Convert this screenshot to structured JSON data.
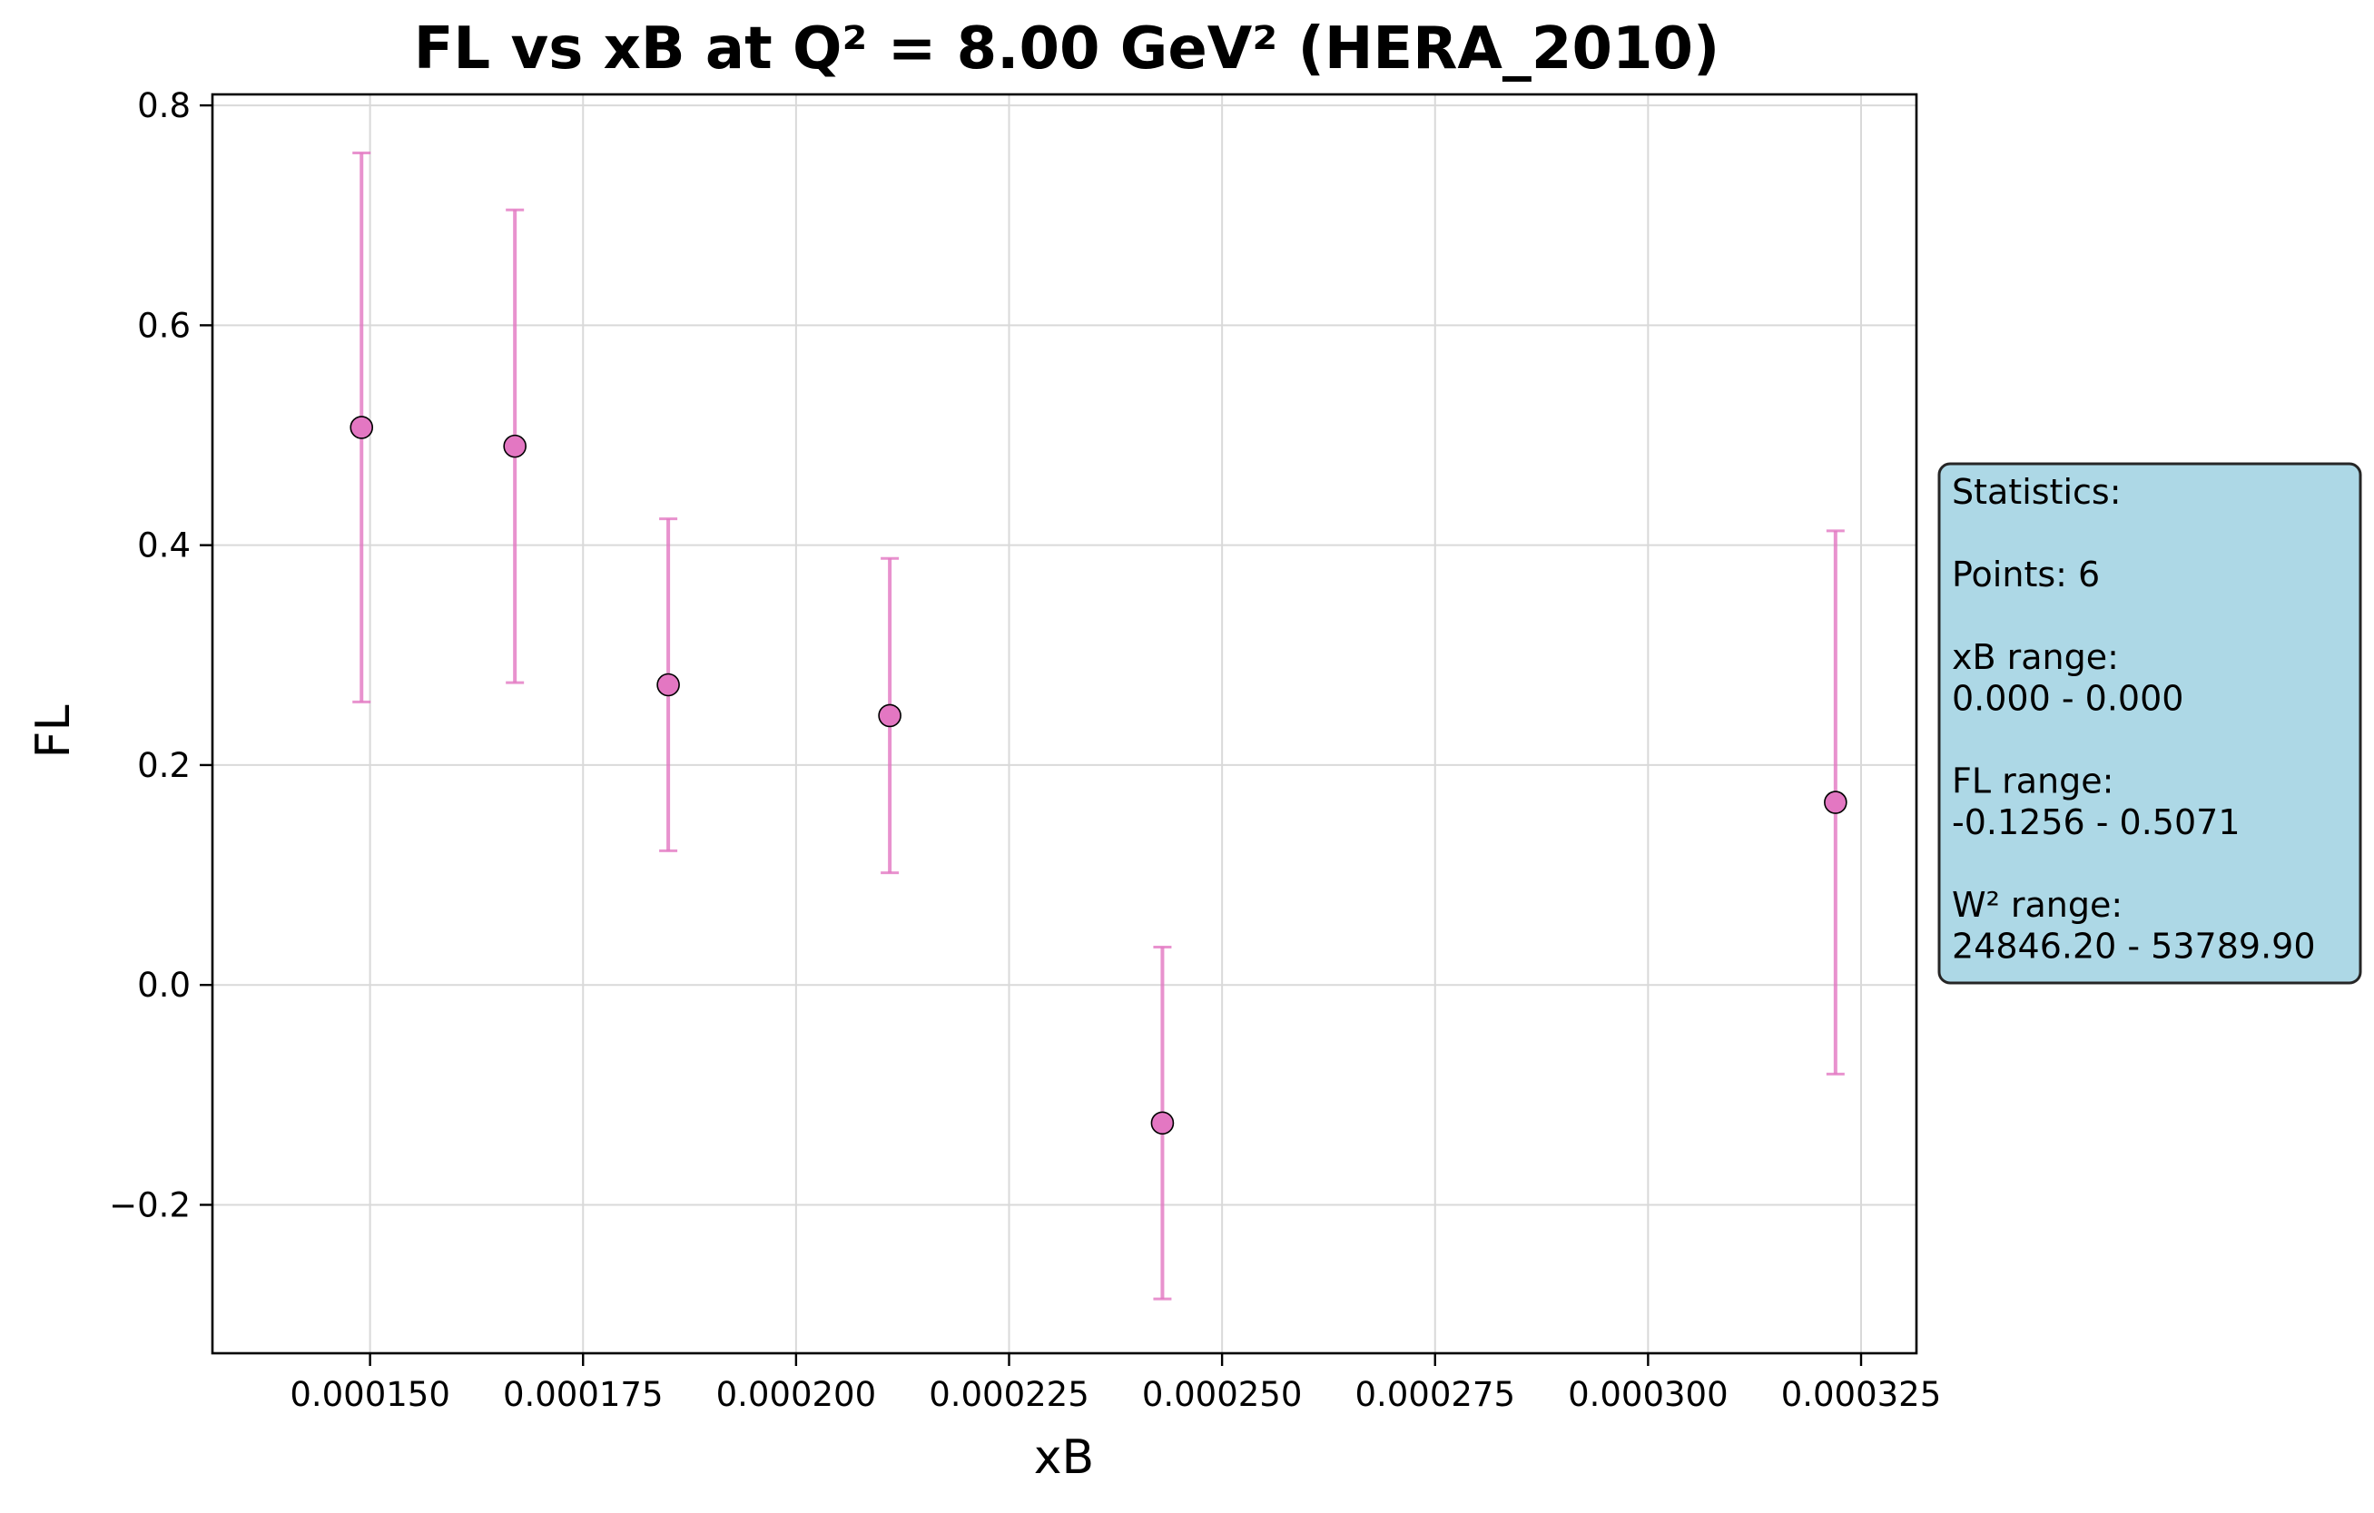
{
  "chart_data": {
    "type": "scatter",
    "title": "FL vs xB at Q² = 8.00 GeV² (HERA_2010)",
    "xlabel": "xB",
    "ylabel": "FL",
    "xlim": [
      0.0001315,
      0.0003315
    ],
    "ylim": [
      -0.335,
      0.81
    ],
    "x_ticks": [
      0.00015,
      0.000175,
      0.0002,
      0.000225,
      0.00025,
      0.000275,
      0.0003,
      0.000325
    ],
    "x_tick_labels": [
      "0.000150",
      "0.000175",
      "0.000200",
      "0.000225",
      "0.000250",
      "0.000275",
      "0.000300",
      "0.000325"
    ],
    "y_ticks": [
      -0.2,
      0.0,
      0.2,
      0.4,
      0.6,
      0.8
    ],
    "y_tick_labels": [
      "−0.2",
      "0.0",
      "0.2",
      "0.4",
      "0.6",
      "0.8"
    ],
    "grid": true,
    "series": [
      {
        "color": "#e377c2",
        "points": [
          {
            "x": 0.000149,
            "y": 0.5071,
            "err": 0.2497
          },
          {
            "x": 0.000167,
            "y": 0.49,
            "err": 0.215
          },
          {
            "x": 0.000185,
            "y": 0.273,
            "err": 0.151
          },
          {
            "x": 0.000211,
            "y": 0.245,
            "err": 0.143
          },
          {
            "x": 0.000243,
            "y": -0.1256,
            "err": 0.16
          },
          {
            "x": 0.000322,
            "y": 0.166,
            "err": 0.247
          }
        ]
      }
    ],
    "stats_box": {
      "lines": [
        "Statistics:",
        "",
        "Points: 6",
        "",
        "xB range:",
        "0.000 - 0.000",
        "",
        "FL range:",
        "-0.1256 - 0.5071",
        "",
        "W² range:",
        "24846.20 - 53789.90"
      ],
      "background": "#add8e6",
      "placement": "right of plot"
    }
  }
}
